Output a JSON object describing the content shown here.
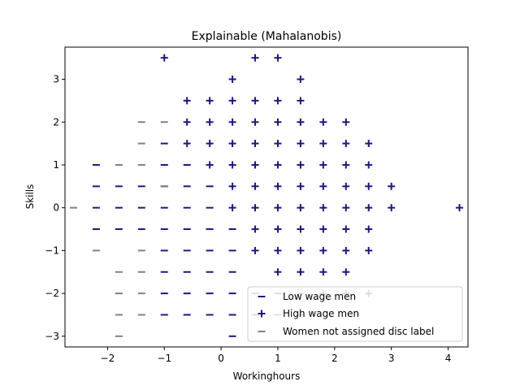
{
  "chart_data": {
    "type": "scatter",
    "title": "Explainable (Mahalanobis)",
    "xlabel": "Workinghours",
    "ylabel": "Skills",
    "xlim": [
      -2.75,
      4.35
    ],
    "ylim": [
      -3.25,
      3.75
    ],
    "x_ticks": [
      -2,
      -1,
      0,
      1,
      2,
      3,
      4
    ],
    "y_ticks": [
      -3,
      -2,
      -1,
      0,
      1,
      2,
      3
    ],
    "x_tick_labels": [
      "−2",
      "−1",
      "0",
      "1",
      "2",
      "3",
      "4"
    ],
    "y_tick_labels": [
      "−3",
      "−2",
      "−1",
      "0",
      "1",
      "2",
      "3"
    ],
    "grid": false,
    "legend_position": "lower-right",
    "series": [
      {
        "name": "Low wage men",
        "marker": "_",
        "color": "#1a1a80",
        "points": [
          [
            -2.2,
            1
          ],
          [
            -2.2,
            0.5
          ],
          [
            -2.2,
            0
          ],
          [
            -2.2,
            -0.5
          ],
          [
            -1.8,
            0.5
          ],
          [
            -1.8,
            0
          ],
          [
            -1.8,
            -0.5
          ],
          [
            -1.4,
            0.5
          ],
          [
            -1.4,
            0
          ],
          [
            -1.4,
            -0.5
          ],
          [
            -1,
            1.5
          ],
          [
            -1,
            1
          ],
          [
            -1,
            0.5
          ],
          [
            -1,
            0
          ],
          [
            -1,
            -0.5
          ],
          [
            -1,
            -1
          ],
          [
            -1,
            -1.5
          ],
          [
            -1,
            -2
          ],
          [
            -1,
            -2.5
          ],
          [
            -0.6,
            1
          ],
          [
            -0.6,
            0.5
          ],
          [
            -0.6,
            0
          ],
          [
            -0.6,
            -0.5
          ],
          [
            -0.6,
            -1
          ],
          [
            -0.6,
            -1.5
          ],
          [
            -0.6,
            -2
          ],
          [
            -0.6,
            -2.5
          ],
          [
            -0.2,
            0.5
          ],
          [
            -0.2,
            0
          ],
          [
            -0.2,
            -0.5
          ],
          [
            -0.2,
            -1
          ],
          [
            -0.2,
            -1.5
          ],
          [
            -0.2,
            -2
          ],
          [
            -0.2,
            -2.5
          ],
          [
            0.2,
            -0.5
          ],
          [
            0.2,
            -1
          ],
          [
            0.2,
            -1.5
          ],
          [
            0.2,
            -2
          ],
          [
            0.2,
            -2.5
          ],
          [
            0.2,
            -3
          ],
          [
            0.6,
            -2
          ],
          [
            0.6,
            -2.5
          ],
          [
            1,
            -2
          ],
          [
            1,
            -2.5
          ],
          [
            1.4,
            -2
          ],
          [
            1.4,
            -2.5
          ]
        ]
      },
      {
        "name": "High wage men",
        "marker": "+",
        "color": "#1a1a80",
        "points": [
          [
            -1,
            3.5
          ],
          [
            0.6,
            3.5
          ],
          [
            1,
            3.5
          ],
          [
            0.2,
            3
          ],
          [
            1.4,
            3
          ],
          [
            -0.6,
            2.5
          ],
          [
            -0.2,
            2.5
          ],
          [
            0.2,
            2.5
          ],
          [
            0.6,
            2.5
          ],
          [
            1,
            2.5
          ],
          [
            1.4,
            2.5
          ],
          [
            -0.6,
            2
          ],
          [
            -0.2,
            2
          ],
          [
            0.2,
            2
          ],
          [
            0.6,
            2
          ],
          [
            1,
            2
          ],
          [
            1.4,
            2
          ],
          [
            1.8,
            2
          ],
          [
            2.2,
            2
          ],
          [
            -0.6,
            1.5
          ],
          [
            -0.2,
            1.5
          ],
          [
            0.2,
            1.5
          ],
          [
            0.6,
            1.5
          ],
          [
            1,
            1.5
          ],
          [
            1.4,
            1.5
          ],
          [
            1.8,
            1.5
          ],
          [
            2.2,
            1.5
          ],
          [
            2.6,
            1.5
          ],
          [
            -0.2,
            1
          ],
          [
            0.2,
            1
          ],
          [
            0.6,
            1
          ],
          [
            1,
            1
          ],
          [
            1.4,
            1
          ],
          [
            1.8,
            1
          ],
          [
            2.2,
            1
          ],
          [
            2.6,
            1
          ],
          [
            0.2,
            0.5
          ],
          [
            0.6,
            0.5
          ],
          [
            1,
            0.5
          ],
          [
            1.4,
            0.5
          ],
          [
            1.8,
            0.5
          ],
          [
            2.2,
            0.5
          ],
          [
            2.6,
            0.5
          ],
          [
            3,
            0.5
          ],
          [
            0.2,
            0
          ],
          [
            0.6,
            0
          ],
          [
            1,
            0
          ],
          [
            1.4,
            0
          ],
          [
            1.8,
            0
          ],
          [
            2.2,
            0
          ],
          [
            2.6,
            0
          ],
          [
            3,
            0
          ],
          [
            4.2,
            0
          ],
          [
            0.6,
            -0.5
          ],
          [
            1,
            -0.5
          ],
          [
            1.4,
            -0.5
          ],
          [
            1.8,
            -0.5
          ],
          [
            2.2,
            -0.5
          ],
          [
            2.6,
            -0.5
          ],
          [
            0.6,
            -1
          ],
          [
            1,
            -1
          ],
          [
            1.4,
            -1
          ],
          [
            1.8,
            -1
          ],
          [
            2.2,
            -1
          ],
          [
            2.6,
            -1
          ],
          [
            1,
            -1.5
          ],
          [
            1.4,
            -1.5
          ],
          [
            1.8,
            -1.5
          ],
          [
            2.2,
            -1.5
          ],
          [
            1.8,
            -2
          ],
          [
            2.2,
            -2
          ],
          [
            2.6,
            -2
          ]
        ]
      },
      {
        "name": "Women not assigned disc label",
        "marker": "_",
        "color": "#808080",
        "points": [
          [
            -2.6,
            0
          ],
          [
            -2.2,
            -1
          ],
          [
            -1.8,
            1
          ],
          [
            -1.8,
            -1.5
          ],
          [
            -1.8,
            -2
          ],
          [
            -1.8,
            -2.5
          ],
          [
            -1.8,
            -3
          ],
          [
            -1.4,
            2
          ],
          [
            -1.4,
            1.5
          ],
          [
            -1.4,
            1
          ],
          [
            -1.4,
            -1
          ],
          [
            -1.4,
            -1.5
          ],
          [
            -1.4,
            -2
          ],
          [
            -1.4,
            -2.5
          ],
          [
            -1,
            2
          ],
          [
            -1,
            0.5
          ]
        ]
      }
    ]
  }
}
